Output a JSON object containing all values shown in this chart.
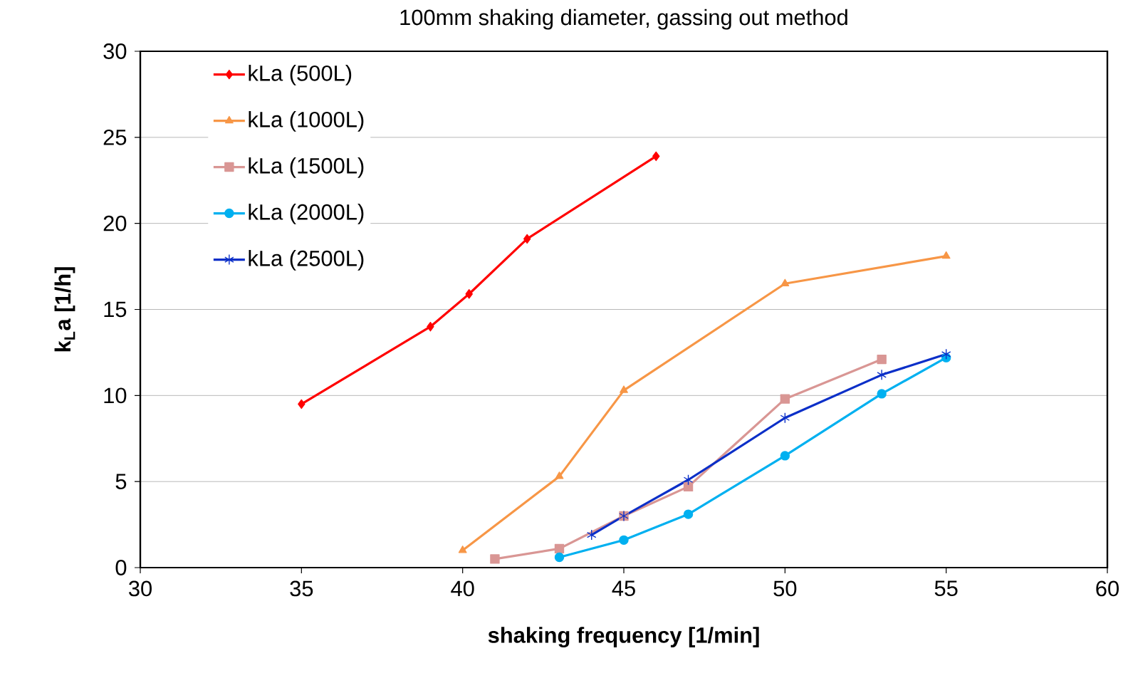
{
  "chart_data": {
    "type": "line",
    "title": "100mm shaking diameter, gassing out method",
    "xlabel": "shaking frequency  [1/min]",
    "ylabel": "**k$_{L}$a  [1/h]**",
    "xlim": [
      30,
      60
    ],
    "xticks": [
      30,
      35,
      40,
      45,
      50,
      55,
      60
    ],
    "ylim": [
      0,
      30
    ],
    "yticks": [
      0,
      5,
      10,
      15,
      20,
      25,
      30
    ],
    "grid": "y",
    "legend": "top left",
    "line_style": "solid",
    "series": [
      {
        "name": "kLa (500L)",
        "color": "#ff0000",
        "marker": "diamond",
        "x": [
          35,
          39,
          40.2,
          42,
          46
        ],
        "values": [
          9.5,
          14.0,
          15.9,
          19.1,
          23.9
        ]
      },
      {
        "name": "kLa (1000L)",
        "color": "#f79646",
        "marker": "triangle",
        "x": [
          40,
          43,
          45,
          50,
          55
        ],
        "values": [
          1.0,
          5.3,
          10.3,
          16.5,
          18.1
        ]
      },
      {
        "name": "kLa (1500L)",
        "color": "#d99694",
        "marker": "square",
        "x": [
          41,
          43,
          45,
          47,
          50,
          53
        ],
        "values": [
          0.5,
          1.1,
          3.0,
          4.7,
          9.8,
          12.1
        ]
      },
      {
        "name": "kLa (2000L)",
        "color": "#00b0f0",
        "marker": "circle",
        "x": [
          43,
          45,
          47,
          50,
          53,
          55
        ],
        "values": [
          0.6,
          1.6,
          3.1,
          6.5,
          10.1,
          12.2
        ]
      },
      {
        "name": "kLa (2500L)",
        "color": "#0b2fc8",
        "marker": "cross",
        "x": [
          44,
          45,
          47,
          50,
          53,
          55
        ],
        "values": [
          1.9,
          3.0,
          5.1,
          8.7,
          11.2,
          12.4
        ]
      }
    ]
  }
}
